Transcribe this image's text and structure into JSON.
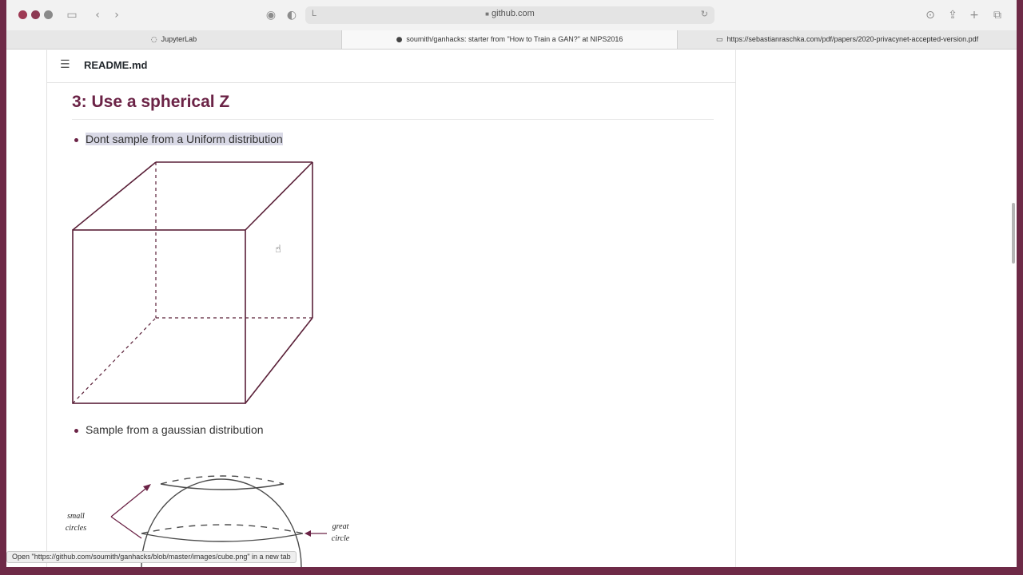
{
  "toolbar": {
    "url": "github.com"
  },
  "tabs": [
    {
      "label": "JupyterLab"
    },
    {
      "label": "soumith/ganhacks: starter from \"How to Train a GAN?\" at NIPS2016"
    },
    {
      "label": "https://sebastianraschka.com/pdf/papers/2020-privacynet-accepted-version.pdf"
    }
  ],
  "readme": {
    "title": "README.md"
  },
  "article": {
    "heading": "3: Use a spherical Z",
    "bullet_1": "Dont sample from a Uniform distribution",
    "bullet_2": "Sample from a gaussian distribution"
  },
  "sphere_labels": {
    "small": "small circles",
    "great": "great circle"
  },
  "status_bar": {
    "text": "Open \"https://github.com/soumith/ganhacks/blob/master/images/cube.png\" in a new tab"
  }
}
